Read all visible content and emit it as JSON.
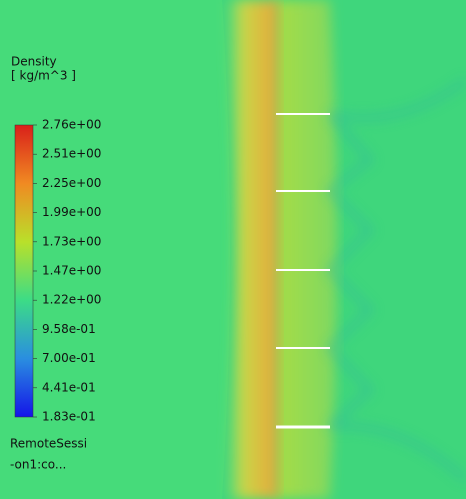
{
  "legend": {
    "title": "Density",
    "unit": "[ kg/m^3 ]",
    "ticks": [
      "2.76e+00",
      "2.51e+00",
      "2.25e+00",
      "1.99e+00",
      "1.73e+00",
      "1.47e+00",
      "1.22e+00",
      "9.58e-01",
      "7.00e-01",
      "4.41e-01",
      "1.83e-01"
    ]
  },
  "footer": {
    "lines": [
      "RemoteSessi",
      "-on1:co..."
    ]
  }
}
